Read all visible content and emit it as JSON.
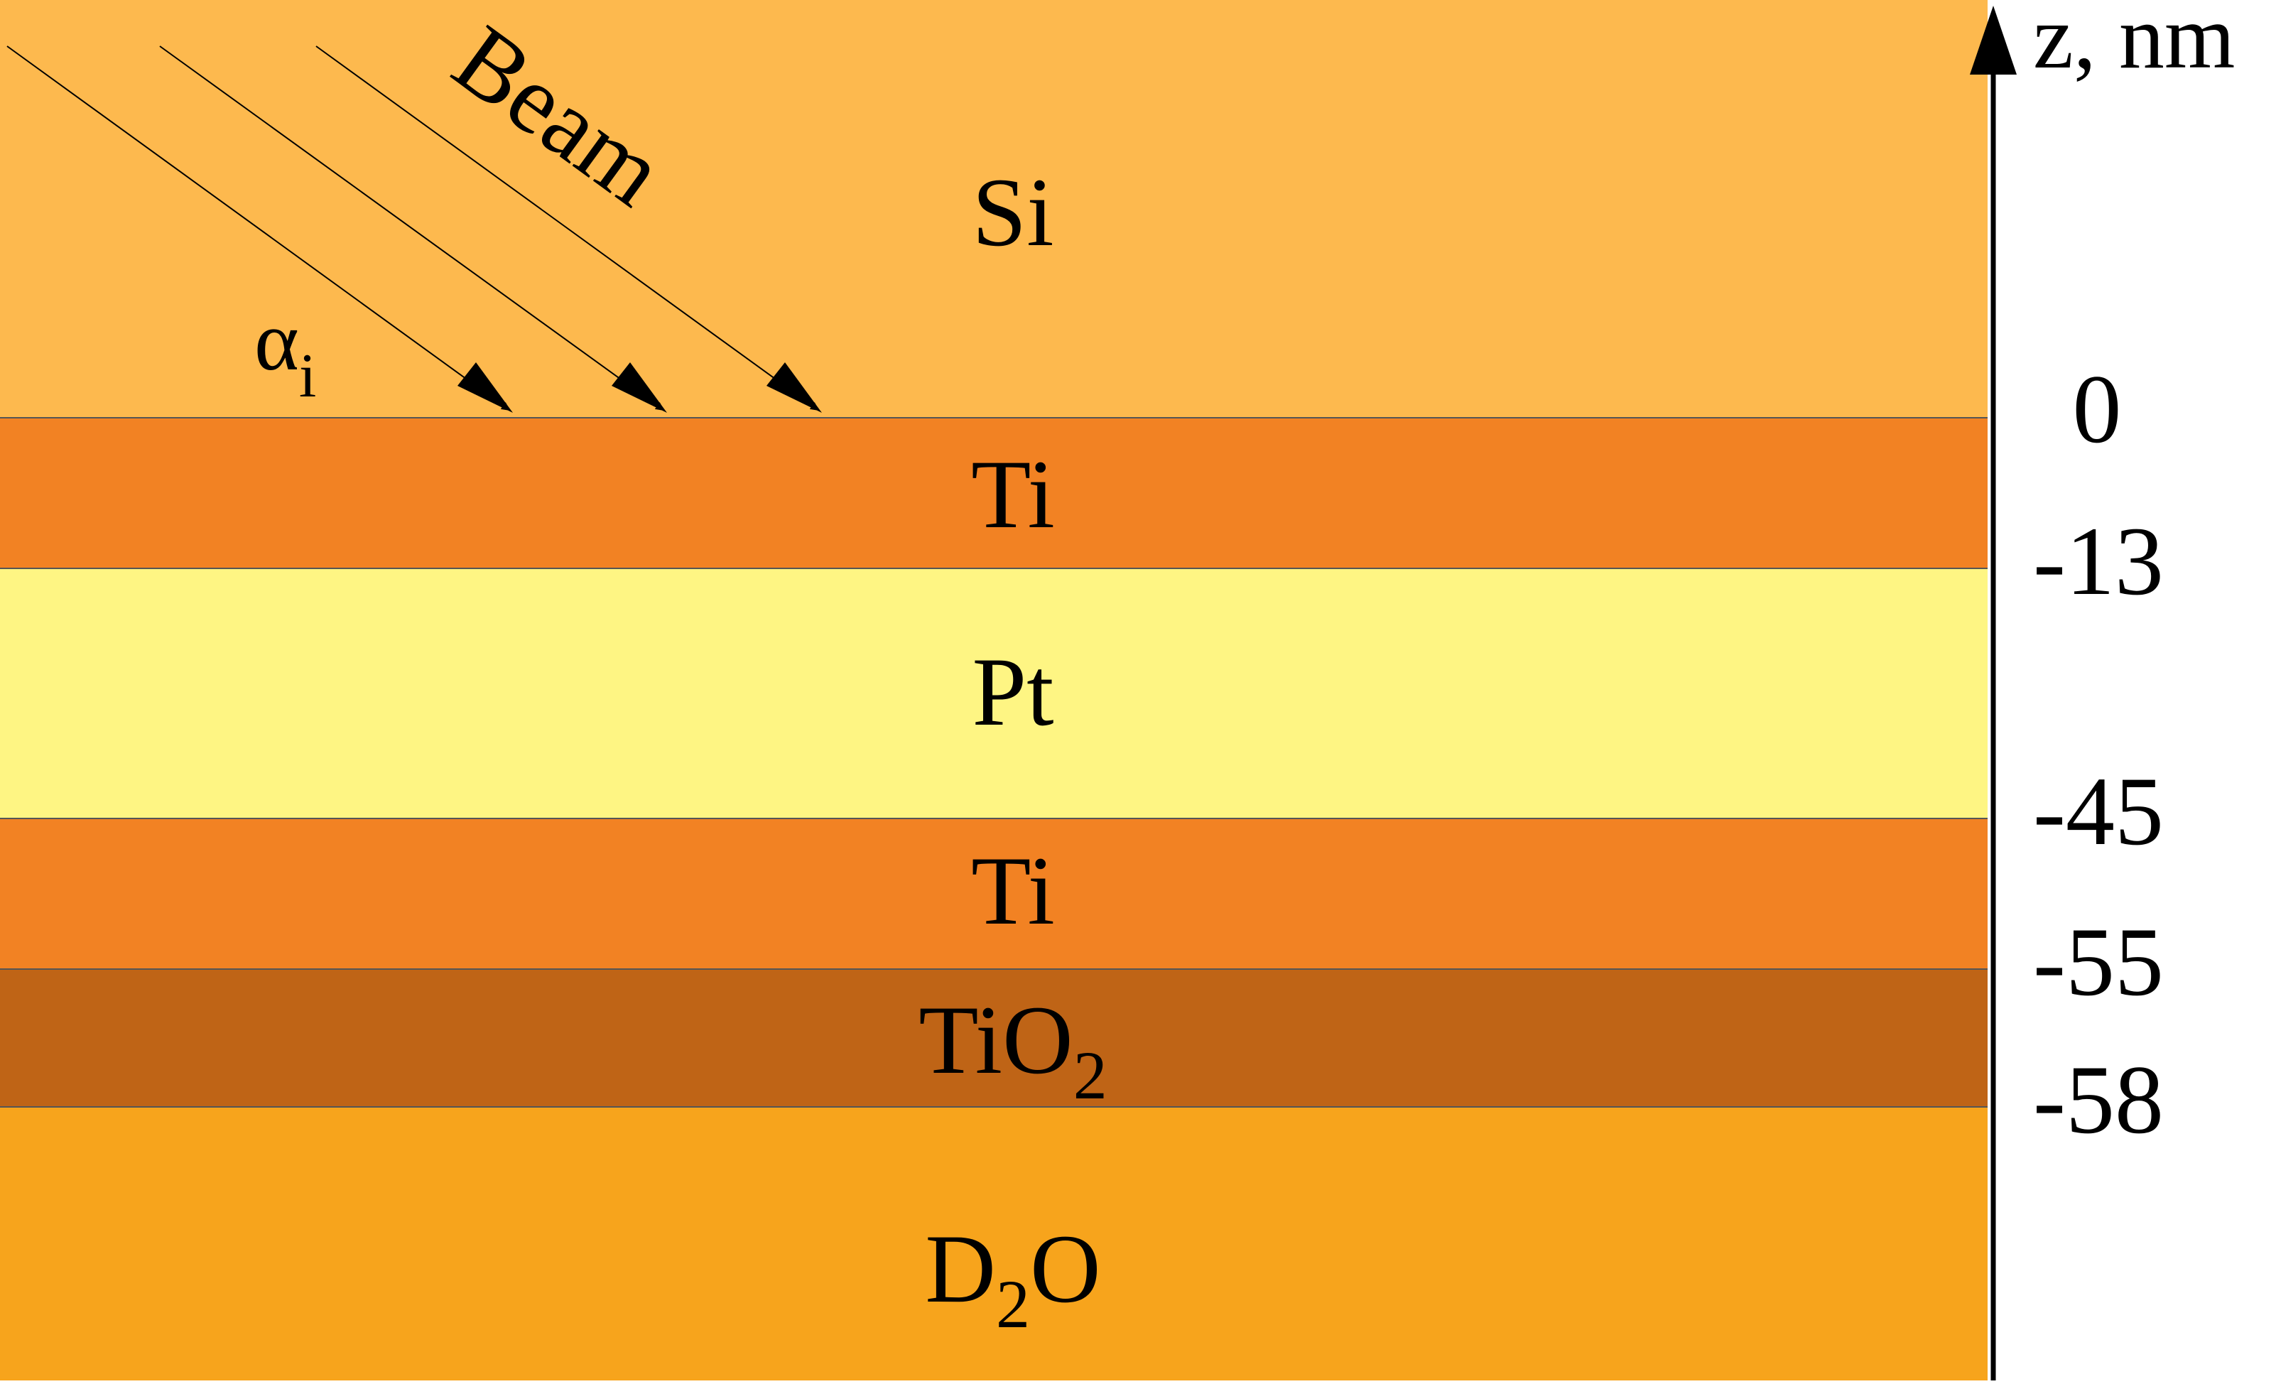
{
  "layers": [
    {
      "id": "si",
      "label": "Si",
      "sub": "",
      "after": "",
      "color": "#fdb94e"
    },
    {
      "id": "ti-top",
      "label": "Ti",
      "sub": "",
      "after": "",
      "color": "#f28223"
    },
    {
      "id": "pt",
      "label": "Pt",
      "sub": "",
      "after": "",
      "color": "#fef583"
    },
    {
      "id": "ti-bottom",
      "label": "Ti",
      "sub": "",
      "after": "",
      "color": "#f28223"
    },
    {
      "id": "tio2",
      "label": "TiO",
      "sub": "2",
      "after": "",
      "color": "#bf6416"
    },
    {
      "id": "d2o",
      "label": "D",
      "sub": "2",
      "after": "O",
      "color": "#f7a41c"
    }
  ],
  "axis": {
    "label": "z, nm",
    "ticks": [
      "0",
      "-13",
      "-45",
      "-55",
      "-58"
    ]
  },
  "beam": {
    "label": "Beam",
    "angle_symbol": "α",
    "angle_subscript": "i"
  }
}
